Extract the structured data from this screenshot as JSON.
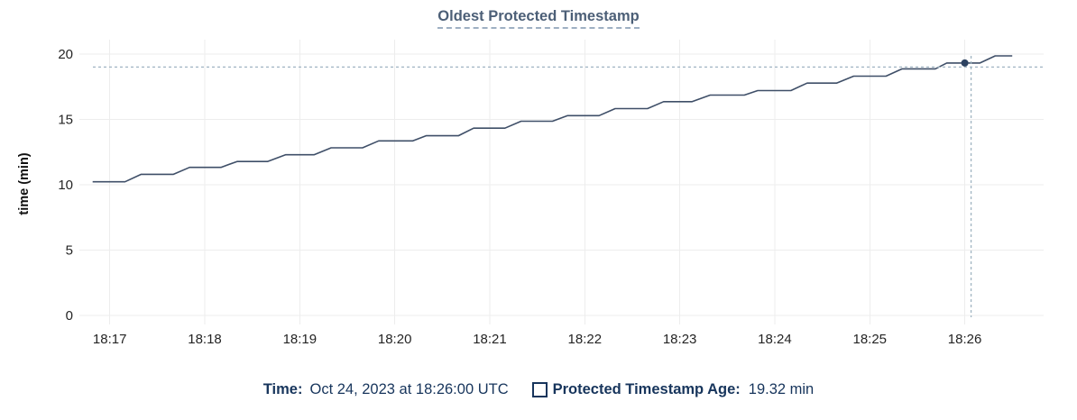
{
  "title": "Oldest Protected Timestamp",
  "colors": {
    "series_line": "#3f4f68",
    "hover_dot": "#2c4160",
    "crosshair": "#a0b4c2",
    "gridline": "#ededed",
    "axis_text": "#242424",
    "axis_title_text": "#111111",
    "title_text": "#4c5f77",
    "title_underline": "#9fb0c3",
    "legend_text": "#17355c"
  },
  "chart_data": {
    "type": "line",
    "title": "Oldest Protected Timestamp",
    "xlabel": "",
    "ylabel": "time (min)",
    "x_unit": "clock time (UTC), decimal minutes after 18:00",
    "x_domain": [
      16.68,
      26.83
    ],
    "y_domain": [
      0,
      20
    ],
    "y_ticks": [
      0,
      5,
      10,
      15,
      20
    ],
    "x_tick_values": [
      17,
      18,
      19,
      20,
      21,
      22,
      23,
      24,
      25,
      26
    ],
    "x_tick_labels": [
      "18:17",
      "18:18",
      "18:19",
      "18:20",
      "18:21",
      "18:22",
      "18:23",
      "18:24",
      "18:25",
      "18:26"
    ],
    "grid": true,
    "legend_position": "bottom",
    "series": [
      {
        "name": "Protected Timestamp Age",
        "unit": "min",
        "points": [
          [
            16.82,
            10.23
          ],
          [
            17.16,
            10.23
          ],
          [
            17.33,
            10.8
          ],
          [
            17.67,
            10.8
          ],
          [
            17.84,
            11.33
          ],
          [
            18.17,
            11.33
          ],
          [
            18.34,
            11.78
          ],
          [
            18.66,
            11.78
          ],
          [
            18.85,
            12.3
          ],
          [
            19.15,
            12.3
          ],
          [
            19.33,
            12.83
          ],
          [
            19.66,
            12.83
          ],
          [
            19.83,
            13.36
          ],
          [
            20.19,
            13.36
          ],
          [
            20.33,
            13.75
          ],
          [
            20.67,
            13.75
          ],
          [
            20.83,
            14.33
          ],
          [
            21.16,
            14.33
          ],
          [
            21.33,
            14.86
          ],
          [
            21.66,
            14.86
          ],
          [
            21.82,
            15.29
          ],
          [
            22.15,
            15.29
          ],
          [
            22.32,
            15.83
          ],
          [
            22.66,
            15.83
          ],
          [
            22.83,
            16.36
          ],
          [
            23.13,
            16.36
          ],
          [
            23.32,
            16.86
          ],
          [
            23.68,
            16.86
          ],
          [
            23.82,
            17.21
          ],
          [
            24.17,
            17.21
          ],
          [
            24.34,
            17.78
          ],
          [
            24.65,
            17.78
          ],
          [
            24.83,
            18.31
          ],
          [
            25.17,
            18.31
          ],
          [
            25.34,
            18.87
          ],
          [
            25.69,
            18.87
          ],
          [
            25.81,
            19.32
          ],
          [
            26.16,
            19.32
          ],
          [
            26.32,
            19.86
          ],
          [
            26.5,
            19.86
          ]
        ]
      }
    ],
    "crosshair": {
      "t": 26.0,
      "v": 19.32,
      "time_label": "18:26:00"
    }
  },
  "tooltip": {
    "time_label": "Time:",
    "time_value": "Oct 24, 2023 at 18:26:00 UTC",
    "series_label": "Protected Timestamp Age:",
    "series_value": "19.32 min"
  }
}
